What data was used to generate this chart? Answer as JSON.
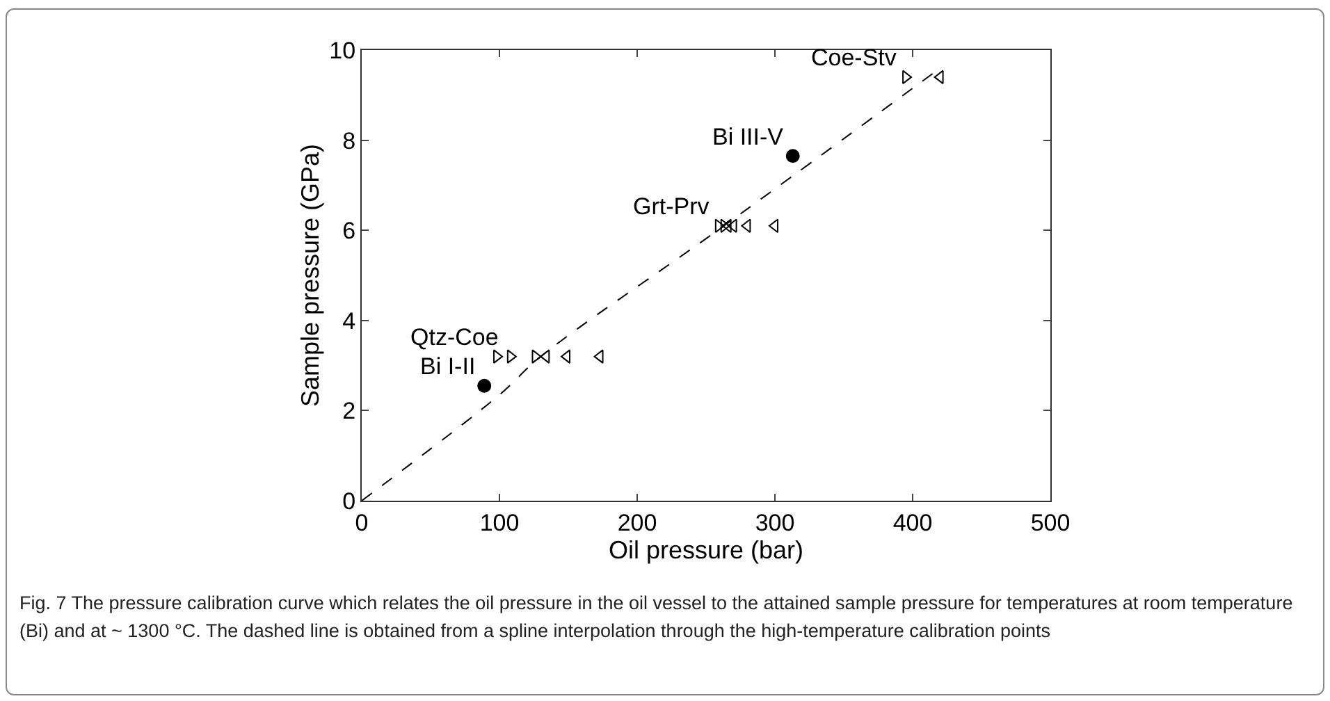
{
  "chart_data": {
    "type": "scatter",
    "xlabel": "Oil pressure (bar)",
    "ylabel": "Sample pressure (GPa)",
    "xlim": [
      0,
      500
    ],
    "xticks": [
      0,
      100,
      200,
      300,
      400,
      500
    ],
    "ylim": [
      0,
      10
    ],
    "yticks": [
      0,
      2,
      4,
      6,
      8,
      10
    ],
    "grid": false,
    "legend": false,
    "series": [
      {
        "marker": "triangle-right",
        "color": "#000000",
        "x": [
          98,
          108,
          126,
          259,
          263,
          395
        ],
        "values": [
          3.2,
          3.2,
          3.2,
          6.1,
          6.1,
          9.4
        ]
      },
      {
        "marker": "triangle-left",
        "color": "#000000",
        "x": [
          134,
          149,
          173,
          266,
          270,
          280,
          300,
          420
        ],
        "values": [
          3.2,
          3.2,
          3.2,
          6.1,
          6.1,
          6.1,
          6.1,
          9.4
        ]
      },
      {
        "marker": "circle",
        "color": "#000000",
        "x": [
          89,
          313
        ],
        "values": [
          2.55,
          7.65
        ]
      },
      {
        "type": "line",
        "line_style": "dashed",
        "color": "#000000",
        "x": [
          0,
          100,
          130,
          263,
          420
        ],
        "values": [
          0,
          2.35,
          3.2,
          6.1,
          9.6
        ]
      }
    ],
    "annotations": [
      {
        "text": "Qtz-Coe",
        "x": 105,
        "y": 3.2
      },
      {
        "text": "Bi I-II",
        "x": 89,
        "y": 2.55
      },
      {
        "text": "Grt-Prv",
        "x": 259,
        "y": 6.1
      },
      {
        "text": "Bi III-V",
        "x": 313,
        "y": 7.65
      },
      {
        "text": "Coe-Stv",
        "x": 395,
        "y": 9.4
      },
      "Fig. 7 The pressure calibration curve which relates the oil pressure in the oil vessel to the attained sample pressure for temperatures at room temperature (Bi) and at ~ 1300 °C. The dashed line is obtained from a spline interpolation through the high-temperature calibration points"
    ]
  }
}
